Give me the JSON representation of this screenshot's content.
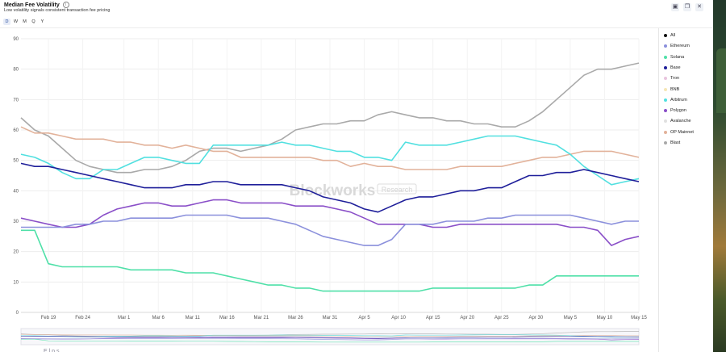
{
  "header": {
    "title": "Median Fee Volatility",
    "subtitle": "Low volatility signals consistent transaction fee pricing",
    "info_icon": "i",
    "tools": [
      {
        "name": "camera-icon",
        "glyph": "▣"
      },
      {
        "name": "copy-icon",
        "glyph": "❐"
      },
      {
        "name": "close-icon",
        "glyph": "✕"
      }
    ]
  },
  "timeframes": [
    "D",
    "W",
    "M",
    "Q",
    "Y"
  ],
  "active_timeframe": "D",
  "watermark": {
    "brand": "Blockworks",
    "tag": "Research"
  },
  "navigator_label": "E l p s",
  "colors": {
    "All": "#111111",
    "Ethereum": "#8b90dc",
    "Solana": "#4fe0a8",
    "Base": "#1f1f9a",
    "Tron": "#e8c4de",
    "BNB": "#f6e6b6",
    "Arbitrum": "#52e0e0",
    "Polygon": "#8a4fc8",
    "Avalanche": "#e0e0e0",
    "OP Mainnet": "#e2b29a",
    "Blast": "#a9a9a9"
  },
  "chart_data": {
    "type": "line",
    "title": "Median Fee Volatility",
    "ylim": [
      0,
      90
    ],
    "y_ticks": [
      0,
      10,
      20,
      30,
      40,
      50,
      60,
      70,
      80,
      90
    ],
    "x_ticks": [
      "Feb 19",
      "Feb 24",
      "Mar 1",
      "Mar 6",
      "Mar 11",
      "Mar 16",
      "Mar 21",
      "Mar 26",
      "Mar 31",
      "Apr 5",
      "Apr 10",
      "Apr 15",
      "Apr 20",
      "Apr 25",
      "Apr 30",
      "May 5",
      "May 10",
      "May 15"
    ],
    "x": [
      "Feb 15",
      "Feb 17",
      "Feb 19",
      "Feb 21",
      "Feb 23",
      "Feb 25",
      "Feb 27",
      "Feb 29",
      "Mar 2",
      "Mar 4",
      "Mar 6",
      "Mar 8",
      "Mar 10",
      "Mar 12",
      "Mar 14",
      "Mar 16",
      "Mar 18",
      "Mar 20",
      "Mar 22",
      "Mar 24",
      "Mar 26",
      "Mar 28",
      "Mar 30",
      "Apr 1",
      "Apr 3",
      "Apr 5",
      "Apr 7",
      "Apr 9",
      "Apr 11",
      "Apr 13",
      "Apr 15",
      "Apr 17",
      "Apr 19",
      "Apr 21",
      "Apr 23",
      "Apr 25",
      "Apr 27",
      "Apr 29",
      "May 1",
      "May 3",
      "May 5",
      "May 7",
      "May 9",
      "May 11",
      "May 13",
      "May 15"
    ],
    "grid": true,
    "legend_position": "right",
    "legend": [
      "All",
      "Ethereum",
      "Solana",
      "Base",
      "Tron",
      "BNB",
      "Arbitrum",
      "Polygon",
      "Avalanche",
      "OP Mainnet",
      "Blast"
    ],
    "series": [
      {
        "name": "Blast",
        "values": [
          64,
          60,
          58,
          54,
          50,
          48,
          47,
          46,
          46,
          47,
          47,
          48,
          50,
          53,
          54,
          54,
          53,
          54,
          55,
          57,
          60,
          61,
          62,
          62,
          63,
          63,
          65,
          66,
          65,
          64,
          64,
          63,
          63,
          62,
          62,
          61,
          61,
          63,
          66,
          70,
          74,
          78,
          80,
          80,
          81,
          82
        ]
      },
      {
        "name": "OP Mainnet",
        "values": [
          61,
          59,
          59,
          58,
          57,
          57,
          57,
          56,
          56,
          55,
          55,
          54,
          55,
          54,
          53,
          53,
          51,
          51,
          51,
          51,
          51,
          51,
          50,
          50,
          48,
          49,
          48,
          48,
          47,
          47,
          47,
          47,
          48,
          48,
          48,
          48,
          49,
          50,
          51,
          51,
          52,
          53,
          53,
          53,
          52,
          51
        ]
      },
      {
        "name": "Arbitrum",
        "values": [
          52,
          51,
          49,
          46,
          44,
          44,
          47,
          47,
          49,
          51,
          51,
          50,
          49,
          49,
          55,
          55,
          55,
          55,
          55,
          56,
          55,
          55,
          54,
          53,
          53,
          51,
          51,
          50,
          56,
          55,
          55,
          55,
          56,
          57,
          58,
          58,
          58,
          57,
          56,
          55,
          52,
          48,
          45,
          42,
          43,
          44
        ]
      },
      {
        "name": "Base",
        "values": [
          49,
          48,
          48,
          47,
          46,
          45,
          44,
          43,
          42,
          41,
          41,
          41,
          42,
          42,
          43,
          43,
          42,
          42,
          42,
          42,
          41,
          40,
          38,
          37,
          36,
          34,
          33,
          35,
          37,
          38,
          38,
          39,
          40,
          40,
          41,
          41,
          43,
          45,
          45,
          46,
          46,
          47,
          46,
          45,
          44,
          43
        ]
      },
      {
        "name": "Polygon",
        "values": [
          31,
          30,
          29,
          28,
          28,
          29,
          32,
          34,
          35,
          36,
          36,
          35,
          35,
          36,
          37,
          37,
          36,
          36,
          36,
          36,
          35,
          35,
          35,
          34,
          33,
          31,
          29,
          29,
          29,
          29,
          28,
          28,
          29,
          29,
          29,
          29,
          29,
          29,
          29,
          29,
          28,
          28,
          27,
          22,
          24,
          25
        ]
      },
      {
        "name": "Ethereum",
        "values": [
          28,
          28,
          28,
          28,
          29,
          29,
          30,
          30,
          31,
          31,
          31,
          31,
          32,
          32,
          32,
          32,
          31,
          31,
          31,
          30,
          29,
          27,
          25,
          24,
          23,
          22,
          22,
          24,
          29,
          29,
          29,
          30,
          30,
          30,
          31,
          31,
          32,
          32,
          32,
          32,
          32,
          31,
          30,
          29,
          30,
          30
        ]
      },
      {
        "name": "Solana",
        "values": [
          27,
          27,
          16,
          15,
          15,
          15,
          15,
          15,
          14,
          14,
          14,
          14,
          13,
          13,
          13,
          12,
          11,
          10,
          9,
          9,
          8,
          8,
          7,
          7,
          7,
          7,
          7,
          7,
          7,
          7,
          8,
          8,
          8,
          8,
          8,
          8,
          8,
          9,
          9,
          12,
          12,
          12,
          12,
          12,
          12,
          12
        ]
      }
    ]
  }
}
